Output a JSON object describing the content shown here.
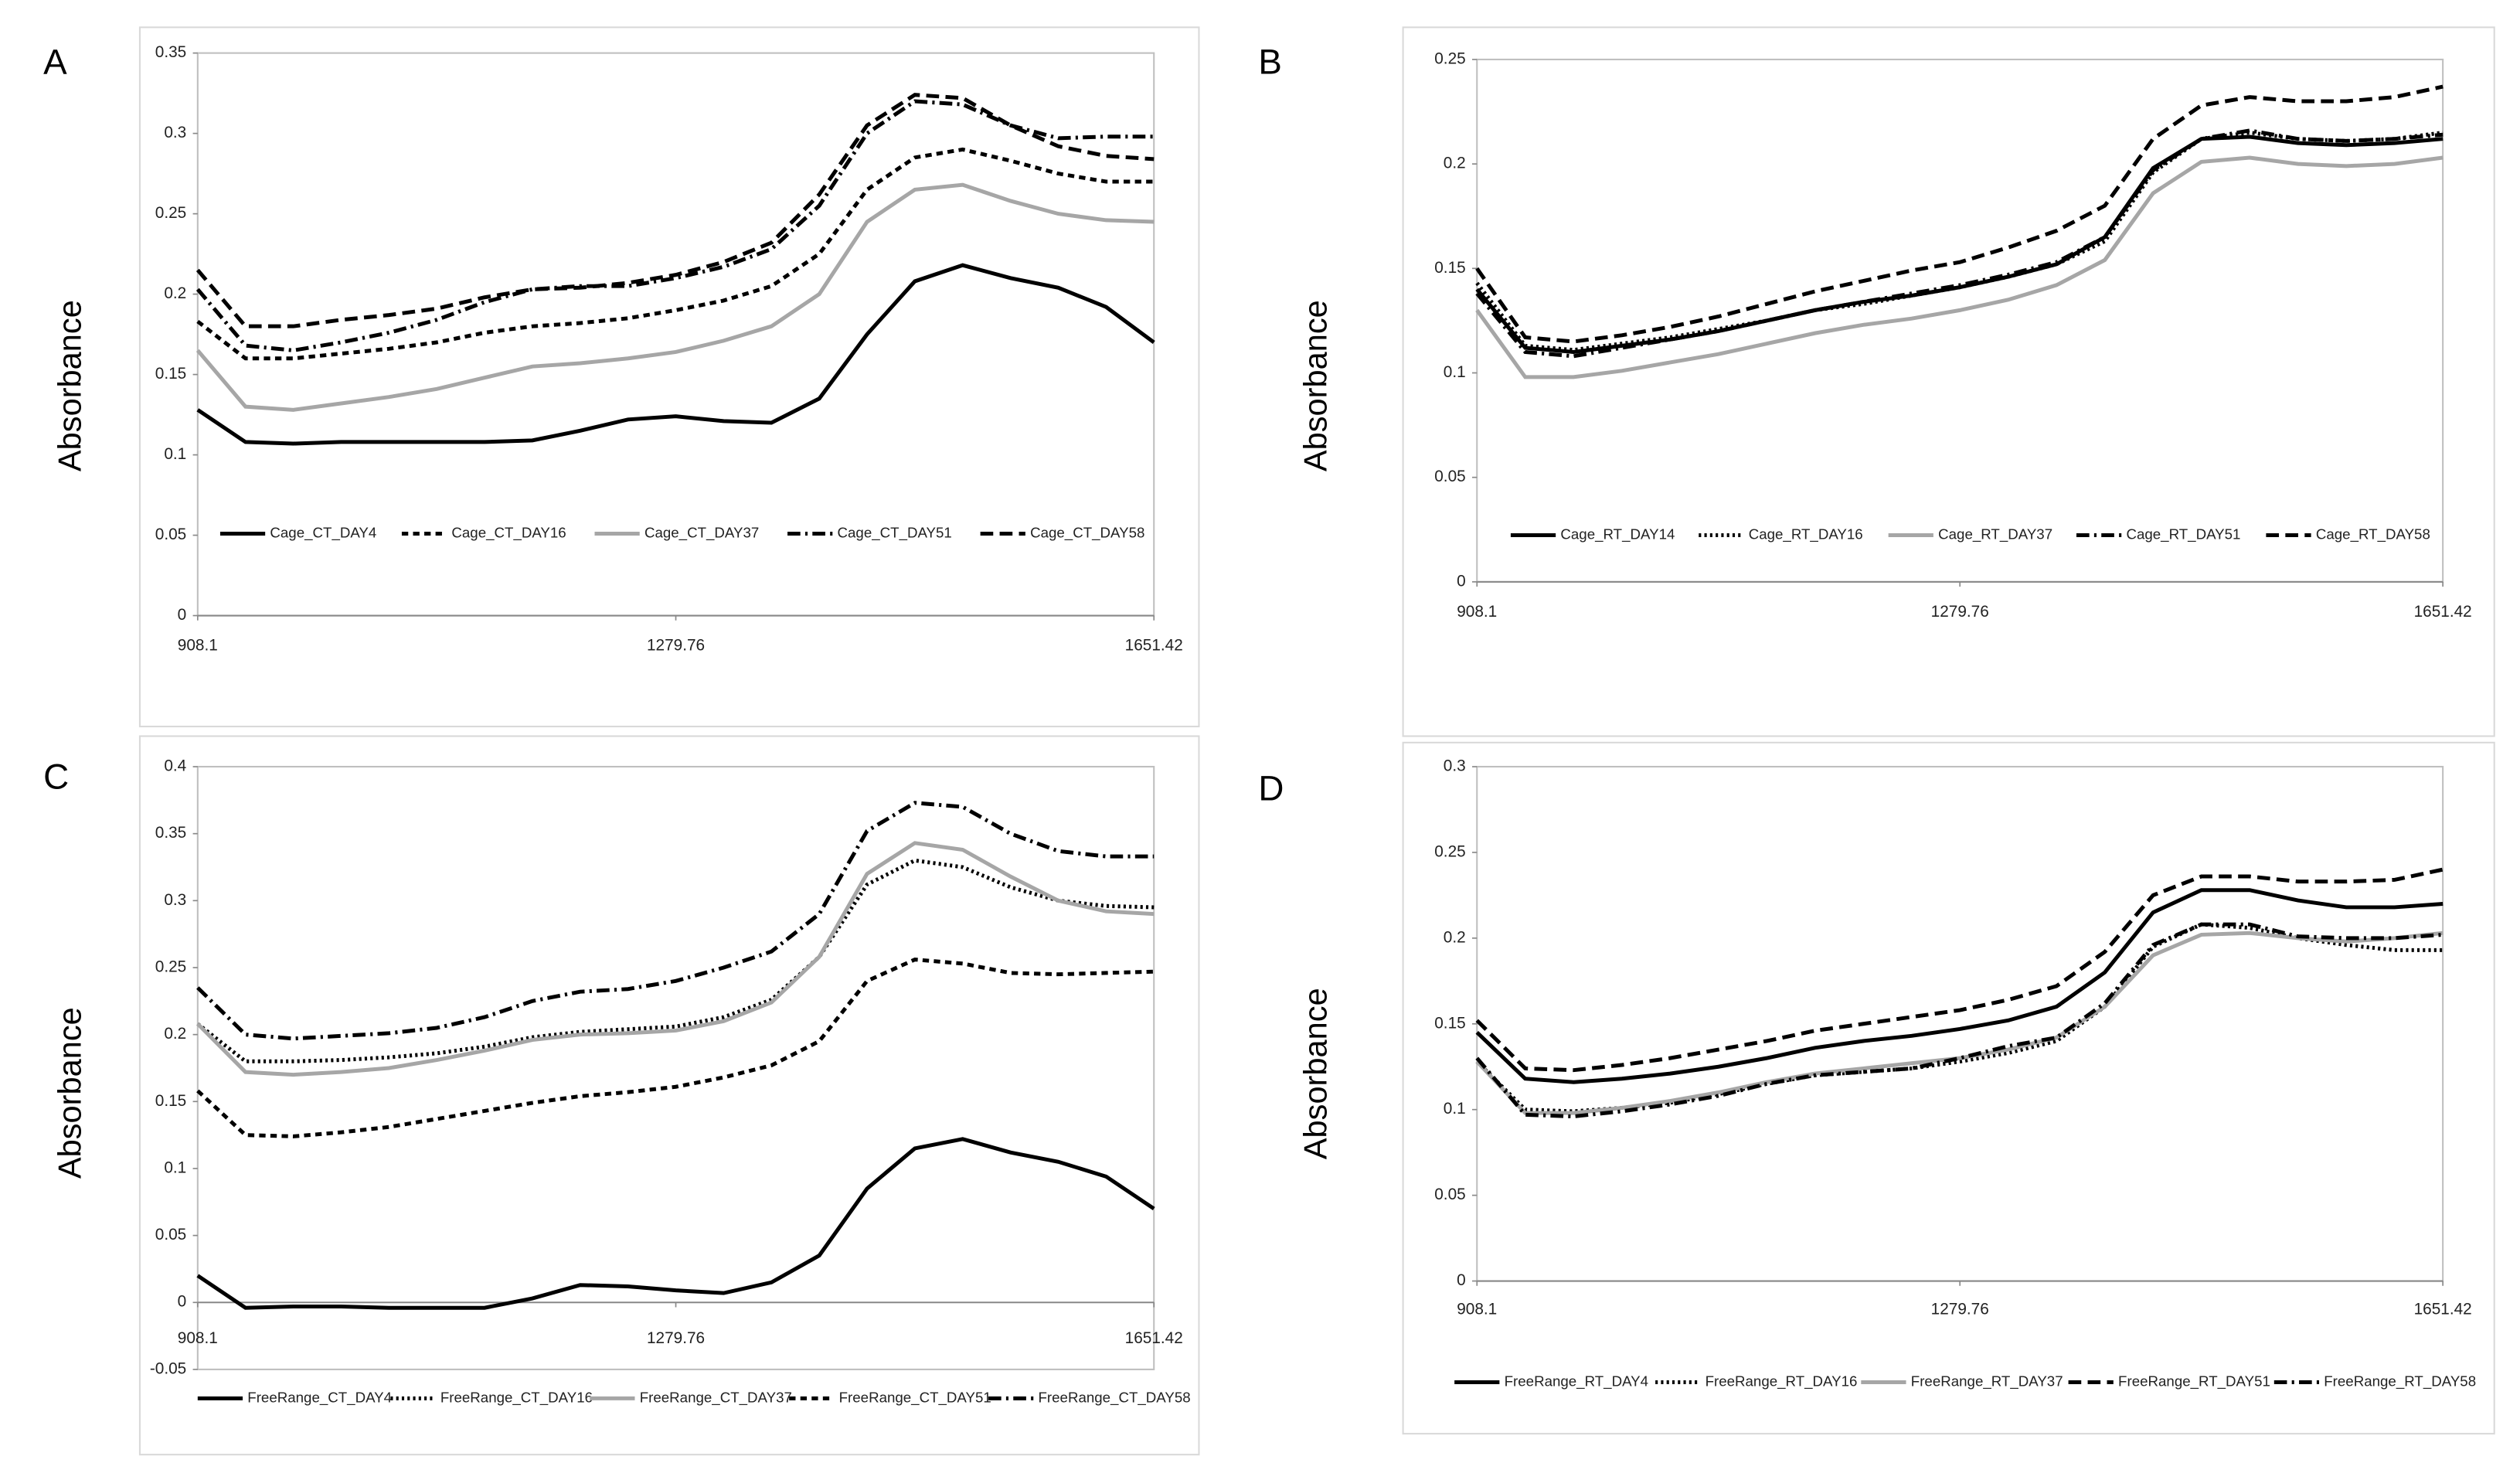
{
  "chart_data": [
    {
      "type": "line",
      "label": "A",
      "ylabel": "Absorbance",
      "x": [
        908.1,
        945.27,
        982.43,
        1019.6,
        1056.76,
        1093.93,
        1131.1,
        1168.26,
        1205.43,
        1242.59,
        1279.76,
        1316.93,
        1354.09,
        1391.26,
        1428.42,
        1465.59,
        1502.76,
        1539.92,
        1577.09,
        1614.25,
        1651.42
      ],
      "xlim": [
        908.1,
        1651.42
      ],
      "xticks": [
        908.1,
        1279.76,
        1651.42
      ],
      "ylim": [
        0,
        0.35
      ],
      "yticks": [
        0,
        0.05,
        0.1,
        0.15,
        0.2,
        0.25,
        0.3,
        0.35
      ],
      "series": [
        {
          "name": "Cage_CT_DAY4",
          "color": "#000000",
          "dash": "solid",
          "values": [
            0.128,
            0.108,
            0.107,
            0.108,
            0.108,
            0.108,
            0.108,
            0.109,
            0.115,
            0.122,
            0.124,
            0.121,
            0.12,
            0.135,
            0.175,
            0.208,
            0.218,
            0.21,
            0.204,
            0.192,
            0.17
          ]
        },
        {
          "name": "Cage_CT_DAY16",
          "color": "#000000",
          "dash": "dash",
          "values": [
            0.183,
            0.16,
            0.16,
            0.163,
            0.166,
            0.17,
            0.176,
            0.18,
            0.182,
            0.185,
            0.19,
            0.196,
            0.205,
            0.225,
            0.265,
            0.285,
            0.29,
            0.283,
            0.275,
            0.27,
            0.27
          ]
        },
        {
          "name": "Cage_CT_DAY37",
          "color": "#a6a6a6",
          "dash": "solid",
          "values": [
            0.165,
            0.13,
            0.128,
            0.132,
            0.136,
            0.141,
            0.148,
            0.155,
            0.157,
            0.16,
            0.164,
            0.171,
            0.18,
            0.2,
            0.245,
            0.265,
            0.268,
            0.258,
            0.25,
            0.246,
            0.245
          ]
        },
        {
          "name": "Cage_CT_DAY51",
          "color": "#000000",
          "dash": "dashdot",
          "values": [
            0.203,
            0.168,
            0.165,
            0.17,
            0.176,
            0.184,
            0.195,
            0.203,
            0.205,
            0.205,
            0.21,
            0.217,
            0.228,
            0.255,
            0.3,
            0.32,
            0.318,
            0.305,
            0.297,
            0.298,
            0.298
          ]
        },
        {
          "name": "Cage_CT_DAY58",
          "color": "#000000",
          "dash": "longdash",
          "values": [
            0.215,
            0.18,
            0.18,
            0.184,
            0.187,
            0.191,
            0.198,
            0.203,
            0.204,
            0.207,
            0.212,
            0.22,
            0.232,
            0.262,
            0.305,
            0.324,
            0.322,
            0.305,
            0.292,
            0.286,
            0.284
          ]
        }
      ]
    },
    {
      "type": "line",
      "label": "B",
      "ylabel": "Absorbance",
      "x": [
        908.1,
        945.27,
        982.43,
        1019.6,
        1056.76,
        1093.93,
        1131.1,
        1168.26,
        1205.43,
        1242.59,
        1279.76,
        1316.93,
        1354.09,
        1391.26,
        1428.42,
        1465.59,
        1502.76,
        1539.92,
        1577.09,
        1614.25,
        1651.42
      ],
      "xlim": [
        908.1,
        1651.42
      ],
      "xticks": [
        908.1,
        1279.76,
        1651.42
      ],
      "ylim": [
        0,
        0.25
      ],
      "yticks": [
        0,
        0.05,
        0.1,
        0.15,
        0.2,
        0.25
      ],
      "series": [
        {
          "name": "Cage_RT_DAY14",
          "color": "#000000",
          "dash": "solid",
          "values": [
            0.14,
            0.112,
            0.11,
            0.113,
            0.116,
            0.12,
            0.125,
            0.13,
            0.134,
            0.137,
            0.141,
            0.146,
            0.152,
            0.165,
            0.198,
            0.212,
            0.213,
            0.21,
            0.209,
            0.21,
            0.212
          ]
        },
        {
          "name": "Cage_RT_DAY16",
          "color": "#000000",
          "dash": "dot",
          "values": [
            0.143,
            0.113,
            0.111,
            0.114,
            0.117,
            0.121,
            0.125,
            0.13,
            0.133,
            0.137,
            0.141,
            0.146,
            0.152,
            0.163,
            0.196,
            0.212,
            0.215,
            0.212,
            0.211,
            0.212,
            0.215
          ]
        },
        {
          "name": "Cage_RT_DAY37",
          "color": "#a6a6a6",
          "dash": "solid",
          "values": [
            0.13,
            0.098,
            0.098,
            0.101,
            0.105,
            0.109,
            0.114,
            0.119,
            0.123,
            0.126,
            0.13,
            0.135,
            0.142,
            0.154,
            0.186,
            0.201,
            0.203,
            0.2,
            0.199,
            0.2,
            0.203
          ]
        },
        {
          "name": "Cage_RT_DAY51",
          "color": "#000000",
          "dash": "dashdot",
          "values": [
            0.138,
            0.11,
            0.108,
            0.112,
            0.116,
            0.12,
            0.125,
            0.13,
            0.134,
            0.138,
            0.142,
            0.147,
            0.153,
            0.165,
            0.197,
            0.212,
            0.216,
            0.212,
            0.211,
            0.212,
            0.214
          ]
        },
        {
          "name": "Cage_RT_DAY58",
          "color": "#000000",
          "dash": "longdash",
          "values": [
            0.15,
            0.117,
            0.115,
            0.118,
            0.122,
            0.127,
            0.133,
            0.139,
            0.144,
            0.149,
            0.153,
            0.16,
            0.168,
            0.18,
            0.212,
            0.228,
            0.232,
            0.23,
            0.23,
            0.232,
            0.237
          ]
        }
      ]
    },
    {
      "type": "line",
      "label": "C",
      "ylabel": "Absorbance",
      "x": [
        908.1,
        945.27,
        982.43,
        1019.6,
        1056.76,
        1093.93,
        1131.1,
        1168.26,
        1205.43,
        1242.59,
        1279.76,
        1316.93,
        1354.09,
        1391.26,
        1428.42,
        1465.59,
        1502.76,
        1539.92,
        1577.09,
        1614.25,
        1651.42
      ],
      "xlim": [
        908.1,
        1651.42
      ],
      "xticks": [
        908.1,
        1279.76,
        1651.42
      ],
      "ylim": [
        -0.05,
        0.4
      ],
      "yticks": [
        -0.05,
        0,
        0.05,
        0.1,
        0.15,
        0.2,
        0.25,
        0.3,
        0.35,
        0.4
      ],
      "series": [
        {
          "name": "FreeRange_CT_DAY4",
          "color": "#000000",
          "dash": "solid",
          "values": [
            0.02,
            -0.004,
            -0.003,
            -0.003,
            -0.004,
            -0.004,
            -0.004,
            0.003,
            0.013,
            0.012,
            0.009,
            0.007,
            0.015,
            0.035,
            0.085,
            0.115,
            0.122,
            0.112,
            0.105,
            0.094,
            0.07
          ]
        },
        {
          "name": "FreeRange_CT_DAY16",
          "color": "#000000",
          "dash": "dot",
          "values": [
            0.208,
            0.18,
            0.18,
            0.181,
            0.183,
            0.186,
            0.191,
            0.198,
            0.202,
            0.204,
            0.206,
            0.213,
            0.226,
            0.258,
            0.312,
            0.33,
            0.325,
            0.31,
            0.3,
            0.296,
            0.295
          ]
        },
        {
          "name": "FreeRange_CT_DAY37",
          "color": "#a6a6a6",
          "dash": "solid",
          "values": [
            0.208,
            0.172,
            0.17,
            0.172,
            0.175,
            0.181,
            0.188,
            0.196,
            0.2,
            0.201,
            0.203,
            0.21,
            0.224,
            0.258,
            0.32,
            0.343,
            0.338,
            0.318,
            0.3,
            0.292,
            0.29
          ]
        },
        {
          "name": "FreeRange_CT_DAY51",
          "color": "#000000",
          "dash": "dash",
          "values": [
            0.158,
            0.125,
            0.124,
            0.127,
            0.131,
            0.137,
            0.143,
            0.149,
            0.154,
            0.157,
            0.161,
            0.168,
            0.177,
            0.195,
            0.24,
            0.256,
            0.253,
            0.246,
            0.245,
            0.246,
            0.247
          ]
        },
        {
          "name": "FreeRange_CT_DAY58",
          "color": "#000000",
          "dash": "dashdot",
          "values": [
            0.235,
            0.2,
            0.197,
            0.199,
            0.201,
            0.205,
            0.213,
            0.225,
            0.232,
            0.234,
            0.24,
            0.25,
            0.262,
            0.29,
            0.352,
            0.373,
            0.37,
            0.35,
            0.337,
            0.333,
            0.333
          ]
        }
      ]
    },
    {
      "type": "line",
      "label": "D",
      "ylabel": "Absorbance",
      "x": [
        908.1,
        945.27,
        982.43,
        1019.6,
        1056.76,
        1093.93,
        1131.1,
        1168.26,
        1205.43,
        1242.59,
        1279.76,
        1316.93,
        1354.09,
        1391.26,
        1428.42,
        1465.59,
        1502.76,
        1539.92,
        1577.09,
        1614.25,
        1651.42
      ],
      "xlim": [
        908.1,
        1651.42
      ],
      "xticks": [
        908.1,
        1279.76,
        1651.42
      ],
      "ylim": [
        0,
        0.3
      ],
      "yticks": [
        0,
        0.05,
        0.1,
        0.15,
        0.2,
        0.25,
        0.3
      ],
      "series": [
        {
          "name": "FreeRange_RT_DAY4",
          "color": "#000000",
          "dash": "solid",
          "values": [
            0.145,
            0.118,
            0.116,
            0.118,
            0.121,
            0.125,
            0.13,
            0.136,
            0.14,
            0.143,
            0.147,
            0.152,
            0.16,
            0.18,
            0.215,
            0.228,
            0.228,
            0.222,
            0.218,
            0.218,
            0.22
          ]
        },
        {
          "name": "FreeRange_RT_DAY16",
          "color": "#000000",
          "dash": "dot",
          "values": [
            0.128,
            0.1,
            0.099,
            0.101,
            0.104,
            0.109,
            0.115,
            0.12,
            0.122,
            0.124,
            0.128,
            0.133,
            0.14,
            0.16,
            0.195,
            0.208,
            0.206,
            0.2,
            0.196,
            0.193,
            0.193
          ]
        },
        {
          "name": "FreeRange_RT_DAY37",
          "color": "#a6a6a6",
          "dash": "solid",
          "values": [
            0.128,
            0.098,
            0.098,
            0.101,
            0.105,
            0.11,
            0.116,
            0.121,
            0.124,
            0.127,
            0.13,
            0.135,
            0.142,
            0.16,
            0.19,
            0.202,
            0.203,
            0.2,
            0.198,
            0.2,
            0.203
          ]
        },
        {
          "name": "FreeRange_RT_DAY51",
          "color": "#000000",
          "dash": "longdash",
          "values": [
            0.152,
            0.124,
            0.123,
            0.126,
            0.13,
            0.135,
            0.14,
            0.146,
            0.15,
            0.154,
            0.158,
            0.164,
            0.172,
            0.192,
            0.225,
            0.236,
            0.236,
            0.233,
            0.233,
            0.234,
            0.24
          ]
        },
        {
          "name": "FreeRange_RT_DAY58",
          "color": "#000000",
          "dash": "dashdot",
          "values": [
            0.13,
            0.097,
            0.096,
            0.099,
            0.103,
            0.108,
            0.115,
            0.12,
            0.122,
            0.124,
            0.13,
            0.137,
            0.142,
            0.162,
            0.196,
            0.208,
            0.208,
            0.201,
            0.2,
            0.2,
            0.202
          ]
        }
      ]
    }
  ]
}
